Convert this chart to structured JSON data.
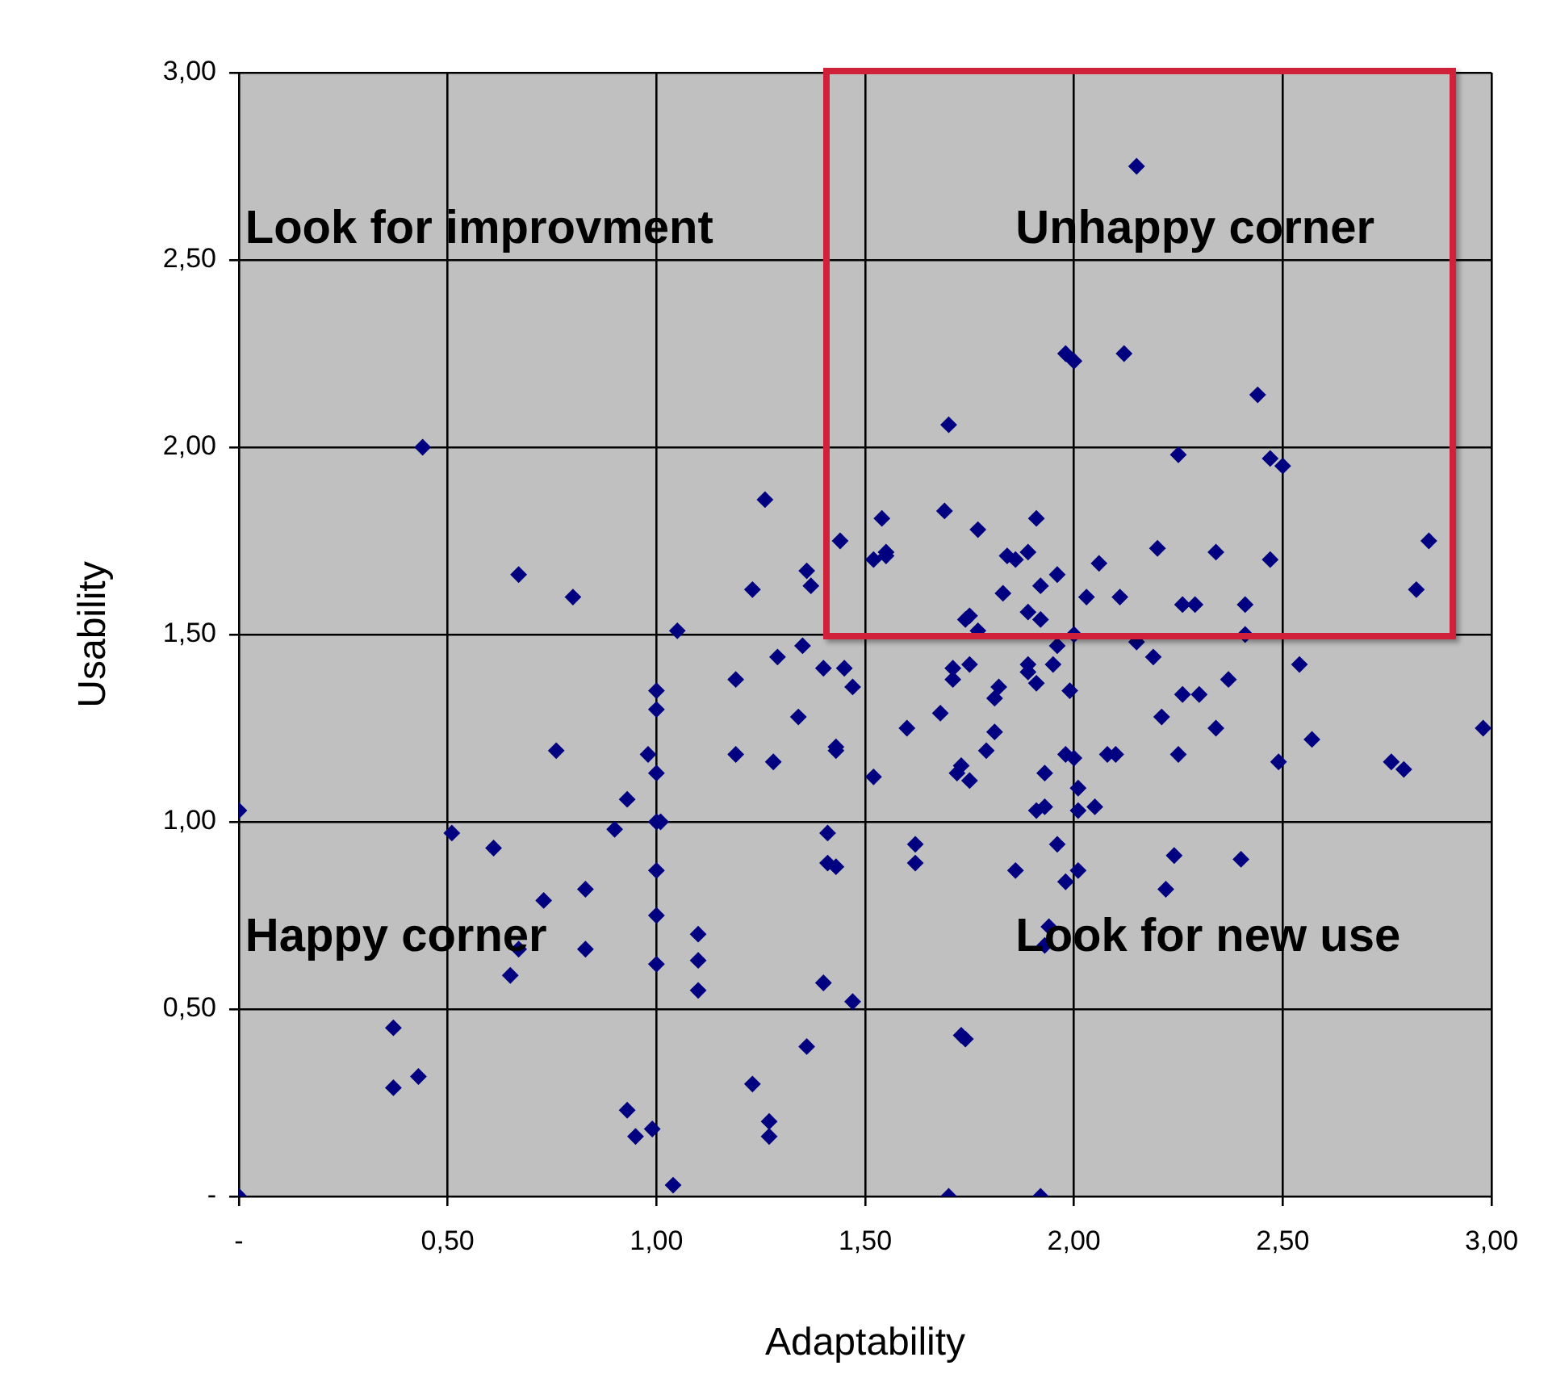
{
  "chart_data": {
    "type": "scatter",
    "xlabel": "Adaptability",
    "ylabel": "Usability",
    "annotations": [
      "Look for improvment",
      "Unhappy corner",
      "Happy corner",
      "Look for new use"
    ],
    "xlim": [
      0,
      3
    ],
    "ylim": [
      0,
      3
    ],
    "xticks": [
      {
        "value": 0,
        "label": "-"
      },
      {
        "value": 0.5,
        "label": "0,50"
      },
      {
        "value": 1,
        "label": "1,00"
      },
      {
        "value": 1.5,
        "label": "1,50"
      },
      {
        "value": 2,
        "label": "2,00"
      },
      {
        "value": 2.5,
        "label": "2,50"
      },
      {
        "value": 3,
        "label": "3,00"
      }
    ],
    "yticks": [
      {
        "value": 0,
        "label": "-"
      },
      {
        "value": 0.5,
        "label": "0,50"
      },
      {
        "value": 1,
        "label": "1,00"
      },
      {
        "value": 1.5,
        "label": "1,50"
      },
      {
        "value": 2,
        "label": "2,00"
      },
      {
        "value": 2.5,
        "label": "2,50"
      },
      {
        "value": 3,
        "label": "3,00"
      }
    ],
    "grid": true,
    "marker": "diamond",
    "series": [
      {
        "color": "#000080",
        "x": [
          0.0,
          0.0,
          0.44,
          0.37,
          0.37,
          0.43,
          0.51,
          0.61,
          0.67,
          0.65,
          0.67,
          0.73,
          0.76,
          0.8,
          0.83,
          0.83,
          0.9,
          0.93,
          0.93,
          0.95,
          0.98,
          0.99,
          1.0,
          1.0,
          1.0,
          1.0,
          1.0,
          1.0,
          1.0,
          1.01,
          1.04,
          1.05,
          1.1,
          1.1,
          1.1,
          1.19,
          1.19,
          1.23,
          1.23,
          1.26,
          1.27,
          1.27,
          1.28,
          1.29,
          1.34,
          1.35,
          1.36,
          1.37,
          1.36,
          1.4,
          1.4,
          1.41,
          1.41,
          1.43,
          1.43,
          1.43,
          1.44,
          1.45,
          1.47,
          1.47,
          1.52,
          1.52,
          1.54,
          1.55,
          1.55,
          1.6,
          1.62,
          1.62,
          1.68,
          1.69,
          1.7,
          1.7,
          1.71,
          1.71,
          1.72,
          1.74,
          1.73,
          1.73,
          1.74,
          1.75,
          1.75,
          1.77,
          1.75,
          1.77,
          1.79,
          1.81,
          1.81,
          1.82,
          1.83,
          1.84,
          1.86,
          1.86,
          1.89,
          1.89,
          1.89,
          1.89,
          1.91,
          1.91,
          1.91,
          1.92,
          1.92,
          1.93,
          1.93,
          1.93,
          1.94,
          1.92,
          1.95,
          1.96,
          1.96,
          1.96,
          1.98,
          2.0,
          1.98,
          1.98,
          1.99,
          2.0,
          2.01,
          2.01,
          2.01,
          2.0,
          2.03,
          2.05,
          2.06,
          2.08,
          2.1,
          2.11,
          2.12,
          2.15,
          2.15,
          2.19,
          2.2,
          2.21,
          2.22,
          2.24,
          2.25,
          2.25,
          2.26,
          2.26,
          2.29,
          2.3,
          2.34,
          2.34,
          2.37,
          2.4,
          2.41,
          2.41,
          2.44,
          2.47,
          2.47,
          2.5,
          2.49,
          2.54,
          2.57,
          2.76,
          2.79,
          2.82,
          2.85,
          2.98
        ],
        "values": [
          1.03,
          0.0,
          2.0,
          0.45,
          0.29,
          0.32,
          0.97,
          0.93,
          1.66,
          0.59,
          0.66,
          0.79,
          1.19,
          1.6,
          0.82,
          0.66,
          0.98,
          1.06,
          0.23,
          0.16,
          1.18,
          0.18,
          1.35,
          1.3,
          1.13,
          1.0,
          0.87,
          0.75,
          0.62,
          1.0,
          0.03,
          1.51,
          0.7,
          0.63,
          0.55,
          1.38,
          1.18,
          1.62,
          0.3,
          1.86,
          0.2,
          0.16,
          1.16,
          1.44,
          1.28,
          1.47,
          1.67,
          1.63,
          0.4,
          0.57,
          1.41,
          0.97,
          0.89,
          0.88,
          1.2,
          1.19,
          1.75,
          1.41,
          1.36,
          0.52,
          1.7,
          1.12,
          1.81,
          1.72,
          1.71,
          1.25,
          0.94,
          0.89,
          1.29,
          1.83,
          2.06,
          0.0,
          1.38,
          1.41,
          1.13,
          1.54,
          1.15,
          0.43,
          0.42,
          1.11,
          1.55,
          1.78,
          1.42,
          1.51,
          1.19,
          1.24,
          1.33,
          1.36,
          1.61,
          1.71,
          1.7,
          0.87,
          1.72,
          1.4,
          1.42,
          1.56,
          1.37,
          1.03,
          1.81,
          1.63,
          1.54,
          1.13,
          1.04,
          0.67,
          0.72,
          0.0,
          1.42,
          1.66,
          1.47,
          0.94,
          2.25,
          2.23,
          1.18,
          0.84,
          1.35,
          1.17,
          1.03,
          1.09,
          0.87,
          1.5,
          1.6,
          1.04,
          1.69,
          1.18,
          1.18,
          1.6,
          2.25,
          2.75,
          1.48,
          1.44,
          1.73,
          1.28,
          0.82,
          0.91,
          1.18,
          1.98,
          1.58,
          1.34,
          1.58,
          1.34,
          1.25,
          1.72,
          1.38,
          0.9,
          1.5,
          1.58,
          2.14,
          1.97,
          1.7,
          1.95,
          1.16,
          1.42,
          1.22,
          1.16,
          1.14,
          1.62,
          1.75,
          1.25
        ]
      }
    ]
  }
}
